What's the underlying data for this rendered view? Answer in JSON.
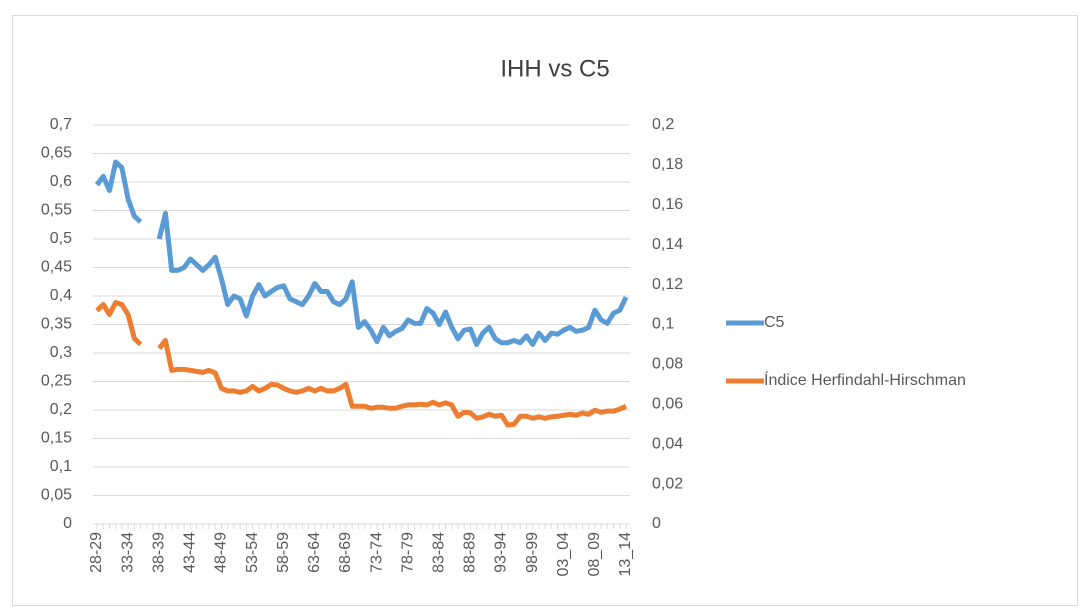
{
  "chart_data": {
    "type": "line",
    "title": "IHH vs C5",
    "categories": [
      "28-29",
      null,
      null,
      null,
      null,
      "33-34",
      null,
      null,
      null,
      null,
      "38-39",
      null,
      null,
      null,
      null,
      "43-44",
      null,
      null,
      null,
      null,
      "48-49",
      null,
      null,
      null,
      null,
      "53-54",
      null,
      null,
      null,
      null,
      "58-59",
      null,
      null,
      null,
      null,
      "63-64",
      null,
      null,
      null,
      null,
      "68-69",
      null,
      null,
      null,
      null,
      "73-74",
      null,
      null,
      null,
      null,
      "78-79",
      null,
      null,
      null,
      null,
      "83-84",
      null,
      null,
      null,
      null,
      "88-89",
      null,
      null,
      null,
      null,
      "93-94",
      null,
      null,
      null,
      null,
      "98-99",
      null,
      null,
      null,
      null,
      "03_04",
      null,
      null,
      null,
      null,
      "08_09",
      null,
      null,
      null,
      null,
      "13_14"
    ],
    "series": [
      {
        "name": "C5",
        "color": "#5b9bd5",
        "axis": "y",
        "values": [
          0.595,
          0.61,
          0.585,
          0.635,
          0.625,
          0.57,
          0.54,
          0.53,
          null,
          null,
          0.5,
          0.545,
          0.445,
          0.445,
          0.45,
          0.465,
          0.455,
          0.445,
          0.455,
          0.468,
          0.43,
          0.385,
          0.4,
          0.395,
          0.365,
          0.4,
          0.42,
          0.4,
          0.408,
          0.415,
          0.418,
          0.395,
          0.39,
          0.385,
          0.4,
          0.422,
          0.408,
          0.408,
          0.39,
          0.385,
          0.395,
          0.425,
          0.345,
          0.355,
          0.34,
          0.32,
          0.345,
          0.33,
          0.338,
          0.343,
          0.358,
          0.352,
          0.352,
          0.378,
          0.37,
          0.35,
          0.372,
          0.345,
          0.325,
          0.34,
          0.342,
          0.315,
          0.335,
          0.345,
          0.325,
          0.318,
          0.318,
          0.322,
          0.318,
          0.33,
          0.315,
          0.335,
          0.322,
          0.335,
          0.333,
          0.34,
          0.345,
          0.338,
          0.34,
          0.345,
          0.375,
          0.358,
          0.352,
          0.37,
          0.375,
          0.398
        ]
      },
      {
        "name": "Índice Herfindahl-Hirschman",
        "color": "#ed7d31",
        "axis": "y2",
        "values": [
          0.107,
          0.11,
          0.105,
          0.111,
          0.11,
          0.105,
          0.093,
          0.09,
          null,
          null,
          0.088,
          0.092,
          0.077,
          0.0775,
          0.0775,
          0.077,
          0.0765,
          0.076,
          0.077,
          0.0757,
          0.068,
          0.0667,
          0.0667,
          0.066,
          0.0667,
          0.069,
          0.0667,
          0.068,
          0.07,
          0.0697,
          0.068,
          0.0667,
          0.066,
          0.0667,
          0.068,
          0.0667,
          0.068,
          0.0667,
          0.0667,
          0.068,
          0.07,
          0.059,
          0.059,
          0.059,
          0.058,
          0.0585,
          0.0585,
          0.058,
          0.058,
          0.059,
          0.0597,
          0.0597,
          0.06,
          0.0597,
          0.061,
          0.0597,
          0.0607,
          0.0597,
          0.054,
          0.056,
          0.0557,
          0.053,
          0.0537,
          0.055,
          0.054,
          0.0545,
          0.0496,
          0.05,
          0.054,
          0.054,
          0.053,
          0.0537,
          0.053,
          0.0537,
          0.054,
          0.0545,
          0.055,
          0.0545,
          0.0556,
          0.055,
          0.057,
          0.056,
          0.0566,
          0.0566,
          0.0576,
          0.059
        ]
      }
    ],
    "ylim": [
      0,
      0.7
    ],
    "yticks": [
      0,
      {
        "value": 0.05,
        "label": "0,05"
      },
      {
        "value": 0.1,
        "label": "0,1"
      },
      {
        "value": 0.15,
        "label": "0,15"
      },
      {
        "value": 0.2,
        "label": "0,2"
      },
      {
        "value": 0.25,
        "label": "0,25"
      },
      {
        "value": 0.3,
        "label": "0,3"
      },
      {
        "value": 0.35,
        "label": "0,35"
      },
      {
        "value": 0.4,
        "label": "0,4"
      },
      {
        "value": 0.45,
        "label": "0,45"
      },
      {
        "value": 0.5,
        "label": "0,5"
      },
      {
        "value": 0.55,
        "label": "0,55"
      },
      {
        "value": 0.6,
        "label": "0,6"
      },
      {
        "value": 0.65,
        "label": "0,65"
      },
      {
        "value": 0.7,
        "label": "0,7"
      }
    ],
    "y2lim": [
      0,
      0.2
    ],
    "y2ticks": [
      0,
      {
        "value": 0.02,
        "label": "0,02"
      },
      {
        "value": 0.04,
        "label": "0,04"
      },
      {
        "value": 0.06,
        "label": "0,06"
      },
      {
        "value": 0.08,
        "label": "0,08"
      },
      {
        "value": 0.1,
        "label": "0,1"
      },
      {
        "value": 0.12,
        "label": "0,12"
      },
      {
        "value": 0.14,
        "label": "0,14"
      },
      {
        "value": 0.16,
        "label": "0,16"
      },
      {
        "value": 0.18,
        "label": "0,18"
      },
      {
        "value": 0.2,
        "label": "0,2"
      }
    ],
    "grid": true,
    "legend": "right"
  }
}
